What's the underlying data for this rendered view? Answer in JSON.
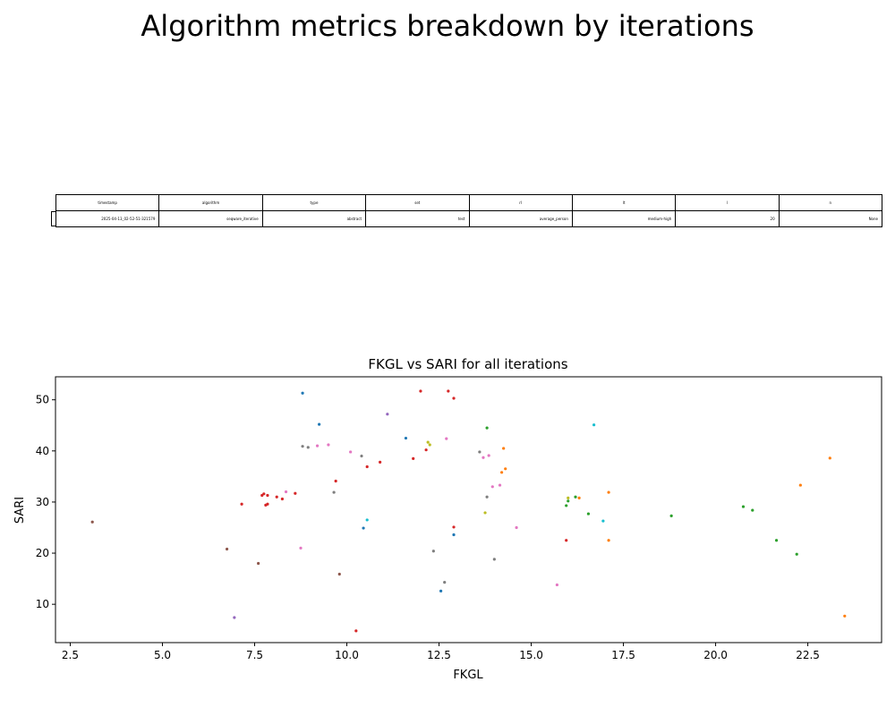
{
  "suptitle": "Algorithm metrics breakdown by iterations",
  "table": {
    "headers": [
      "timestamp",
      "algorithm",
      "type",
      "set",
      "rl",
      "lt",
      "l",
      "n"
    ],
    "values": [
      "2025-04-13_02-52-51-321579",
      "seqware_iterative",
      "abstract",
      "test",
      "average_person",
      "medium-high",
      "20",
      "None"
    ]
  },
  "chart_data": {
    "type": "scatter",
    "title": "FKGL vs SARI for all iterations",
    "xlabel": "FKGL",
    "ylabel": "SARI",
    "xlim": [
      2.1,
      24.5
    ],
    "ylim": [
      2.5,
      54.5
    ],
    "xticks": [
      2.5,
      5.0,
      7.5,
      10.0,
      12.5,
      15.0,
      17.5,
      20.0,
      22.5
    ],
    "xtick_labels": [
      "2.5",
      "5.0",
      "7.5",
      "10.0",
      "12.5",
      "15.0",
      "17.5",
      "20.0",
      "22.5"
    ],
    "yticks": [
      10,
      20,
      30,
      40,
      50
    ],
    "ytick_labels": [
      "10",
      "20",
      "30",
      "40",
      "50"
    ],
    "grid": false,
    "points": [
      {
        "x": 8.8,
        "y": 51.3,
        "color": "#1f77b4"
      },
      {
        "x": 9.25,
        "y": 45.2,
        "color": "#1f77b4"
      },
      {
        "x": 11.6,
        "y": 42.5,
        "color": "#1f77b4"
      },
      {
        "x": 10.45,
        "y": 24.9,
        "color": "#1f77b4"
      },
      {
        "x": 12.9,
        "y": 23.6,
        "color": "#1f77b4"
      },
      {
        "x": 12.55,
        "y": 12.6,
        "color": "#1f77b4"
      },
      {
        "x": 14.25,
        "y": 40.5,
        "color": "#ff7f0e"
      },
      {
        "x": 14.3,
        "y": 36.5,
        "color": "#ff7f0e"
      },
      {
        "x": 14.2,
        "y": 35.8,
        "color": "#ff7f0e"
      },
      {
        "x": 16.3,
        "y": 30.8,
        "color": "#ff7f0e"
      },
      {
        "x": 17.1,
        "y": 31.9,
        "color": "#ff7f0e"
      },
      {
        "x": 17.1,
        "y": 22.5,
        "color": "#ff7f0e"
      },
      {
        "x": 22.3,
        "y": 33.3,
        "color": "#ff7f0e"
      },
      {
        "x": 23.1,
        "y": 38.6,
        "color": "#ff7f0e"
      },
      {
        "x": 23.5,
        "y": 7.7,
        "color": "#ff7f0e"
      },
      {
        "x": 13.8,
        "y": 44.5,
        "color": "#2ca02c"
      },
      {
        "x": 15.95,
        "y": 29.3,
        "color": "#2ca02c"
      },
      {
        "x": 16.0,
        "y": 30.2,
        "color": "#2ca02c"
      },
      {
        "x": 16.2,
        "y": 31.0,
        "color": "#2ca02c"
      },
      {
        "x": 16.55,
        "y": 27.7,
        "color": "#2ca02c"
      },
      {
        "x": 18.8,
        "y": 27.3,
        "color": "#2ca02c"
      },
      {
        "x": 20.75,
        "y": 29.1,
        "color": "#2ca02c"
      },
      {
        "x": 21.0,
        "y": 28.4,
        "color": "#2ca02c"
      },
      {
        "x": 21.65,
        "y": 22.5,
        "color": "#2ca02c"
      },
      {
        "x": 22.2,
        "y": 19.8,
        "color": "#2ca02c"
      },
      {
        "x": 7.15,
        "y": 29.6,
        "color": "#d62728"
      },
      {
        "x": 7.7,
        "y": 31.3,
        "color": "#d62728"
      },
      {
        "x": 7.75,
        "y": 31.6,
        "color": "#d62728"
      },
      {
        "x": 7.85,
        "y": 31.3,
        "color": "#d62728"
      },
      {
        "x": 7.8,
        "y": 29.4,
        "color": "#d62728"
      },
      {
        "x": 7.85,
        "y": 29.6,
        "color": "#d62728"
      },
      {
        "x": 8.1,
        "y": 31.0,
        "color": "#d62728"
      },
      {
        "x": 8.25,
        "y": 30.6,
        "color": "#d62728"
      },
      {
        "x": 8.6,
        "y": 31.7,
        "color": "#d62728"
      },
      {
        "x": 9.7,
        "y": 34.1,
        "color": "#d62728"
      },
      {
        "x": 10.55,
        "y": 36.9,
        "color": "#d62728"
      },
      {
        "x": 10.9,
        "y": 37.8,
        "color": "#d62728"
      },
      {
        "x": 11.8,
        "y": 38.5,
        "color": "#d62728"
      },
      {
        "x": 12.15,
        "y": 40.2,
        "color": "#d62728"
      },
      {
        "x": 12.0,
        "y": 51.7,
        "color": "#d62728"
      },
      {
        "x": 12.75,
        "y": 51.7,
        "color": "#d62728"
      },
      {
        "x": 12.9,
        "y": 50.3,
        "color": "#d62728"
      },
      {
        "x": 12.9,
        "y": 25.1,
        "color": "#d62728"
      },
      {
        "x": 15.95,
        "y": 22.5,
        "color": "#d62728"
      },
      {
        "x": 10.25,
        "y": 4.8,
        "color": "#d62728"
      },
      {
        "x": 6.95,
        "y": 7.4,
        "color": "#9467bd"
      },
      {
        "x": 11.1,
        "y": 47.2,
        "color": "#9467bd"
      },
      {
        "x": 3.1,
        "y": 26.1,
        "color": "#8c564b"
      },
      {
        "x": 6.75,
        "y": 20.8,
        "color": "#8c564b"
      },
      {
        "x": 7.6,
        "y": 18.0,
        "color": "#8c564b"
      },
      {
        "x": 9.8,
        "y": 15.9,
        "color": "#8c564b"
      },
      {
        "x": 8.75,
        "y": 21.0,
        "color": "#e377c2"
      },
      {
        "x": 8.35,
        "y": 32.0,
        "color": "#e377c2"
      },
      {
        "x": 9.2,
        "y": 41.0,
        "color": "#e377c2"
      },
      {
        "x": 9.5,
        "y": 41.2,
        "color": "#e377c2"
      },
      {
        "x": 10.1,
        "y": 39.8,
        "color": "#e377c2"
      },
      {
        "x": 12.7,
        "y": 42.4,
        "color": "#e377c2"
      },
      {
        "x": 13.7,
        "y": 38.7,
        "color": "#e377c2"
      },
      {
        "x": 13.85,
        "y": 39.1,
        "color": "#e377c2"
      },
      {
        "x": 13.95,
        "y": 33.0,
        "color": "#e377c2"
      },
      {
        "x": 14.15,
        "y": 33.3,
        "color": "#e377c2"
      },
      {
        "x": 14.6,
        "y": 25.0,
        "color": "#e377c2"
      },
      {
        "x": 15.7,
        "y": 13.8,
        "color": "#e377c2"
      },
      {
        "x": 8.8,
        "y": 40.9,
        "color": "#7f7f7f"
      },
      {
        "x": 8.95,
        "y": 40.7,
        "color": "#7f7f7f"
      },
      {
        "x": 9.65,
        "y": 31.9,
        "color": "#7f7f7f"
      },
      {
        "x": 10.4,
        "y": 39.0,
        "color": "#7f7f7f"
      },
      {
        "x": 12.35,
        "y": 20.4,
        "color": "#7f7f7f"
      },
      {
        "x": 12.65,
        "y": 14.3,
        "color": "#7f7f7f"
      },
      {
        "x": 13.6,
        "y": 39.8,
        "color": "#7f7f7f"
      },
      {
        "x": 13.8,
        "y": 31.0,
        "color": "#7f7f7f"
      },
      {
        "x": 14.0,
        "y": 18.8,
        "color": "#7f7f7f"
      },
      {
        "x": 12.2,
        "y": 41.7,
        "color": "#bcbd22"
      },
      {
        "x": 12.25,
        "y": 41.2,
        "color": "#bcbd22"
      },
      {
        "x": 13.75,
        "y": 27.9,
        "color": "#bcbd22"
      },
      {
        "x": 16.0,
        "y": 30.8,
        "color": "#bcbd22"
      },
      {
        "x": 10.55,
        "y": 26.5,
        "color": "#17becf"
      },
      {
        "x": 16.7,
        "y": 45.1,
        "color": "#17becf"
      },
      {
        "x": 16.95,
        "y": 26.3,
        "color": "#17becf"
      }
    ]
  }
}
